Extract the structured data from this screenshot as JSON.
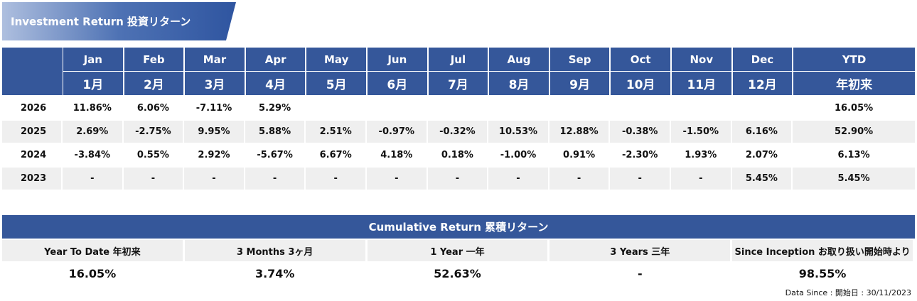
{
  "header": {
    "title": "Investment Return 投資リターン"
  },
  "monthly": {
    "columns": [
      {
        "en": "Jan",
        "jp": "1月"
      },
      {
        "en": "Feb",
        "jp": "2月"
      },
      {
        "en": "Mar",
        "jp": "3月"
      },
      {
        "en": "Apr",
        "jp": "4月"
      },
      {
        "en": "May",
        "jp": "5月"
      },
      {
        "en": "Jun",
        "jp": "6月"
      },
      {
        "en": "Jul",
        "jp": "7月"
      },
      {
        "en": "Aug",
        "jp": "8月"
      },
      {
        "en": "Sep",
        "jp": "9月"
      },
      {
        "en": "Oct",
        "jp": "10月"
      },
      {
        "en": "Nov",
        "jp": "11月"
      },
      {
        "en": "Dec",
        "jp": "12月"
      }
    ],
    "ytd_header": {
      "en": "YTD",
      "jp": "年初来"
    },
    "rows": [
      {
        "year": "2026",
        "months": [
          "11.86%",
          "6.06%",
          "-7.11%",
          "5.29%"
        ],
        "ytd": "16.05%"
      },
      {
        "year": "2025",
        "months": [
          "2.69%",
          "-2.75%",
          "9.95%",
          "5.88%",
          "2.51%",
          "-0.97%",
          "-0.32%",
          "10.53%",
          "12.88%",
          "-0.38%",
          "-1.50%",
          "6.16%"
        ],
        "ytd": "52.90%"
      },
      {
        "year": "2024",
        "months": [
          "-3.84%",
          "0.55%",
          "2.92%",
          "-5.67%",
          "6.67%",
          "4.18%",
          "0.18%",
          "-1.00%",
          "0.91%",
          "-2.30%",
          "1.93%",
          "2.07%"
        ],
        "ytd": "6.13%"
      },
      {
        "year": "2023",
        "months": [
          "-",
          "-",
          "-",
          "-",
          "-",
          "-",
          "-",
          "-",
          "-",
          "-",
          "-",
          "5.45%"
        ],
        "ytd": "5.45%"
      }
    ]
  },
  "cumulative": {
    "title": "Cumulative Return 累積リターン",
    "labels": [
      "Year To Date 年初来",
      "3 Months 3ヶ月",
      "1 Year 一年",
      "3 Years 三年",
      "Since Inception お取り扱い開始時より"
    ],
    "values": [
      "16.05%",
      "3.74%",
      "52.63%",
      "-",
      "98.55%"
    ]
  },
  "footer": {
    "note": "Data Since : 開始日 : 30/11/2023"
  }
}
